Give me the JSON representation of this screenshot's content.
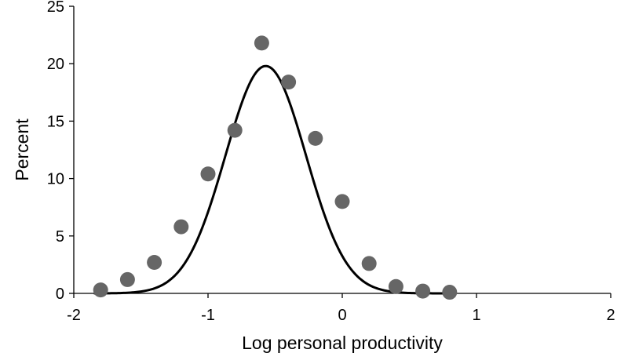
{
  "chart_data": {
    "type": "scatter",
    "title": "",
    "xlabel": "Log personal productivity",
    "ylabel": "Percent",
    "xlim": [
      -2,
      2
    ],
    "ylim": [
      0,
      25
    ],
    "x_ticks": [
      -2,
      -1,
      0,
      1,
      2
    ],
    "x_tick_labels": [
      "-2",
      "-1",
      "0",
      "1",
      "2"
    ],
    "y_ticks": [
      0,
      5,
      10,
      15,
      20,
      25
    ],
    "y_tick_labels": [
      "0",
      "5",
      "10",
      "15",
      "20",
      "25"
    ],
    "grid": false,
    "legend": "none",
    "series": [
      {
        "kind": "points",
        "color": "#666666",
        "x": [
          -1.8,
          -1.6,
          -1.4,
          -1.2,
          -1.0,
          -0.8,
          -0.6,
          -0.4,
          -0.2,
          0.0,
          0.2,
          0.4,
          0.6,
          0.8
        ],
        "y": [
          0.3,
          1.2,
          2.7,
          5.8,
          10.4,
          14.2,
          21.8,
          18.4,
          13.5,
          8.0,
          2.6,
          0.6,
          0.2,
          0.1
        ]
      },
      {
        "kind": "fitted-curve",
        "color": "#000000",
        "peak_x": -0.57,
        "peak_y": 19.8,
        "std": 0.3
      }
    ]
  }
}
